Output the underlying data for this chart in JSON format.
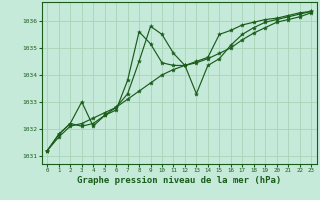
{
  "bg_color": "#c5eada",
  "grid_color": "#a8d4b8",
  "line_color": "#1a5c1a",
  "xlabel": "Graphe pression niveau de la mer (hPa)",
  "xlabel_fontsize": 6.5,
  "xlim": [
    -0.5,
    23.5
  ],
  "ylim": [
    1030.7,
    1036.7
  ],
  "yticks": [
    1031,
    1032,
    1033,
    1034,
    1035,
    1036
  ],
  "xticks": [
    0,
    1,
    2,
    3,
    4,
    5,
    6,
    7,
    8,
    9,
    10,
    11,
    12,
    13,
    14,
    15,
    16,
    17,
    18,
    19,
    20,
    21,
    22,
    23
  ],
  "line1_x": [
    0,
    1,
    2,
    3,
    4,
    5,
    6,
    7,
    8,
    9,
    10,
    11,
    12,
    13,
    14,
    15,
    16,
    17,
    18,
    19,
    20,
    21,
    22,
    23
  ],
  "line1_y": [
    1031.2,
    1031.7,
    1032.1,
    1032.2,
    1032.4,
    1032.6,
    1032.8,
    1033.1,
    1033.4,
    1033.7,
    1034.0,
    1034.2,
    1034.35,
    1034.45,
    1034.6,
    1034.8,
    1035.0,
    1035.3,
    1035.55,
    1035.75,
    1035.95,
    1036.05,
    1036.15,
    1036.3
  ],
  "line2_x": [
    0,
    1,
    2,
    3,
    4,
    5,
    6,
    7,
    8,
    9,
    10,
    11,
    12,
    13,
    14,
    15,
    16,
    17,
    18,
    19,
    20,
    21,
    22,
    23
  ],
  "line2_y": [
    1031.2,
    1031.8,
    1032.2,
    1032.1,
    1032.2,
    1032.5,
    1032.8,
    1033.3,
    1034.5,
    1035.8,
    1035.5,
    1034.8,
    1034.35,
    1033.3,
    1034.35,
    1034.6,
    1035.1,
    1035.5,
    1035.75,
    1035.95,
    1036.05,
    1036.15,
    1036.25,
    1036.35
  ],
  "line3_x": [
    0,
    1,
    2,
    3,
    4,
    5,
    6,
    7,
    8,
    9,
    10,
    11,
    12,
    13,
    14,
    15,
    16,
    17,
    18,
    19,
    20,
    21,
    22,
    23
  ],
  "line3_y": [
    1031.2,
    1031.8,
    1032.2,
    1033.0,
    1032.1,
    1032.5,
    1032.7,
    1033.8,
    1035.6,
    1035.15,
    1034.45,
    1034.35,
    1034.35,
    1034.5,
    1034.65,
    1035.5,
    1035.65,
    1035.85,
    1035.95,
    1036.05,
    1036.1,
    1036.2,
    1036.3,
    1036.35
  ]
}
